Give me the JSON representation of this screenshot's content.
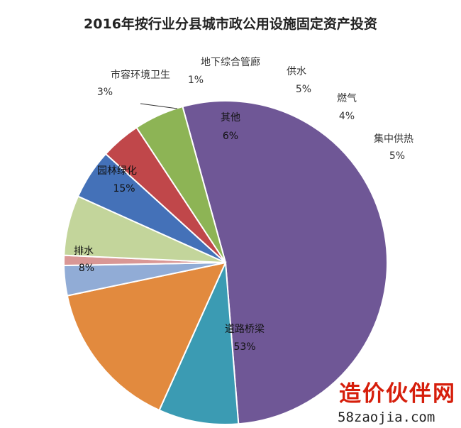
{
  "chart_data": {
    "type": "pie",
    "title": "2016年按行业分县城市政公用设施固定资产投资",
    "slices": [
      {
        "name": "道路桥梁",
        "percent_label": "53%",
        "value": 53,
        "color": "#6f5796"
      },
      {
        "name": "排水",
        "percent_label": "8%",
        "value": 8,
        "color": "#3b9bb3"
      },
      {
        "name": "园林绿化",
        "percent_label": "15%",
        "value": 15,
        "color": "#e28a3e"
      },
      {
        "name": "市容环境卫生",
        "percent_label": "3%",
        "value": 3,
        "color": "#91acd6"
      },
      {
        "name": "地下综合管廊",
        "percent_label": "1%",
        "value": 1,
        "color": "#d99795"
      },
      {
        "name": "其他",
        "percent_label": "6%",
        "value": 6,
        "color": "#c3d59b"
      },
      {
        "name": "供水",
        "percent_label": "5%",
        "value": 5,
        "color": "#4471b8"
      },
      {
        "name": "燃气",
        "percent_label": "4%",
        "value": 4,
        "color": "#c0474a"
      },
      {
        "name": "集中供热",
        "percent_label": "5%",
        "value": 5,
        "color": "#8db455"
      }
    ]
  },
  "watermark": {
    "brand": "造价伙伴网",
    "domain": "58zaojia.com"
  }
}
